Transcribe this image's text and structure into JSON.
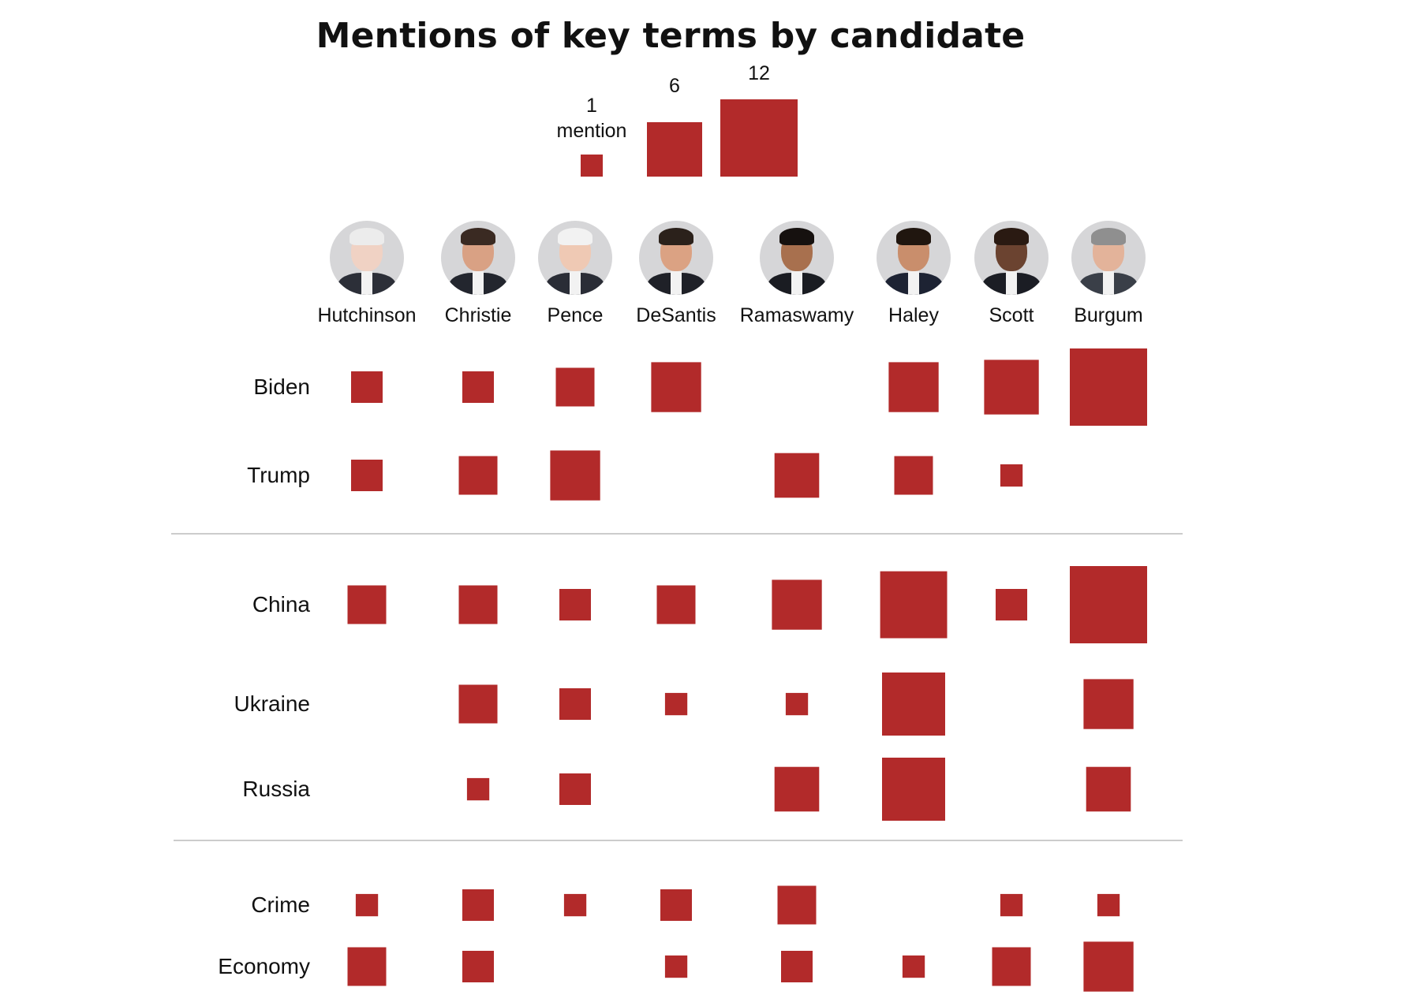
{
  "colors": {
    "square": "#b22a2a",
    "divider": "#cccccc",
    "text": "#111111"
  },
  "chart_data": {
    "type": "table",
    "title": "Mentions of key terms by candidate",
    "legend": {
      "items": [
        {
          "value": 1,
          "label": "1",
          "sublabel": "mention"
        },
        {
          "value": 6,
          "label": "6"
        },
        {
          "value": 12,
          "label": "12"
        }
      ]
    },
    "candidates": [
      {
        "name": "Hutchinson",
        "icon": "hutchinson-portrait-icon"
      },
      {
        "name": "Christie",
        "icon": "christie-portrait-icon"
      },
      {
        "name": "Pence",
        "icon": "pence-portrait-icon"
      },
      {
        "name": "DeSantis",
        "icon": "desantis-portrait-icon"
      },
      {
        "name": "Ramaswamy",
        "icon": "ramaswamy-portrait-icon"
      },
      {
        "name": "Haley",
        "icon": "haley-portrait-icon"
      },
      {
        "name": "Scott",
        "icon": "scott-portrait-icon"
      },
      {
        "name": "Burgum",
        "icon": "burgum-portrait-icon"
      }
    ],
    "terms": [
      {
        "name": "Biden",
        "values": [
          2,
          2,
          3,
          5,
          0,
          5,
          6,
          12
        ]
      },
      {
        "name": "Trump",
        "values": [
          2,
          3,
          5,
          0,
          4,
          3,
          1,
          0
        ]
      },
      {
        "name": "China",
        "values": [
          3,
          3,
          2,
          3,
          5,
          9,
          2,
          12
        ]
      },
      {
        "name": "Ukraine",
        "values": [
          0,
          3,
          2,
          1,
          1,
          8,
          0,
          5
        ]
      },
      {
        "name": "Russia",
        "values": [
          0,
          1,
          2,
          0,
          4,
          8,
          0,
          4
        ]
      },
      {
        "name": "Crime",
        "values": [
          1,
          2,
          1,
          2,
          3,
          0,
          1,
          1
        ]
      },
      {
        "name": "Economy",
        "values": [
          3,
          2,
          0,
          1,
          2,
          1,
          3,
          5
        ]
      }
    ],
    "groups": [
      [
        "Biden",
        "Trump"
      ],
      [
        "China",
        "Ukraine",
        "Russia"
      ],
      [
        "Crime",
        "Economy"
      ]
    ],
    "size_encoding": "square area proportional to number of mentions"
  }
}
